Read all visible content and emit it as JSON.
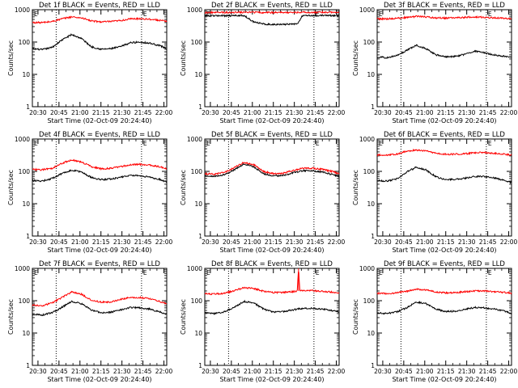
{
  "figure": {
    "colors": {
      "events": "#000000",
      "lld": "#ff0000",
      "markers": "#000000"
    },
    "chart_data": [
      {
        "type": "line",
        "title": "Det 1f BLACK = Events, RED = LLD",
        "xlabel": "Start Time (02-Oct-09 20:24:40)",
        "ylabel": "Counts/sec",
        "yscale": "log",
        "ylim": [
          1,
          1000
        ],
        "xlim": [
          "20:26",
          "22:02"
        ],
        "x_tick_labels": [
          "20:30",
          "20:45",
          "21:00",
          "21:15",
          "21:30",
          "21:45",
          "22:00"
        ],
        "y_tick_labels": [
          "1",
          "10",
          "100",
          "1000"
        ],
        "markers": [
          {
            "x": "20:43",
            "label": ""
          },
          {
            "x": "21:44",
            "label": "E"
          }
        ],
        "start_marker_label": "E",
        "x": [
          "20:26",
          "20:33",
          "20:40",
          "20:47",
          "20:54",
          "21:01",
          "21:08",
          "21:15",
          "21:22",
          "21:29",
          "21:36",
          "21:43",
          "21:50",
          "21:57",
          "22:02"
        ],
        "series": [
          {
            "name": "Events",
            "values": [
              62,
              58,
              68,
              115,
              170,
              130,
              72,
              60,
              62,
              72,
              95,
              100,
              92,
              78,
              62
            ]
          },
          {
            "name": "LLD",
            "values": [
              400,
              400,
              430,
              520,
              600,
              560,
              450,
              420,
              430,
              460,
              520,
              530,
              510,
              470,
              430
            ]
          }
        ]
      },
      {
        "type": "line",
        "title": "Det 2f BLACK = Events, RED = LLD",
        "xlabel": "Start Time (02-Oct-09 20:24:40)",
        "ylabel": "Counts/sec",
        "yscale": "log",
        "ylim": [
          1,
          1000
        ],
        "xlim": [
          "20:26",
          "22:02"
        ],
        "x_tick_labels": [
          "20:30",
          "20:45",
          "21:00",
          "21:15",
          "21:30",
          "21:45",
          "22:00"
        ],
        "y_tick_labels": [
          "1",
          "10",
          "100",
          "1000"
        ],
        "markers": [
          {
            "x": "20:43",
            "label": ""
          },
          {
            "x": "21:44",
            "label": "E"
          }
        ],
        "start_marker_label": "E",
        "x": [
          "20:26",
          "20:33",
          "20:40",
          "20:47",
          "20:54",
          "21:01",
          "21:08",
          "21:15",
          "21:22",
          "21:29",
          "21:32",
          "21:36",
          "21:43",
          "21:50",
          "21:57",
          "22:02"
        ],
        "series": [
          {
            "name": "Events",
            "values": [
              650,
              650,
              650,
              660,
              660,
              420,
              360,
              350,
              350,
              360,
              360,
              660,
              660,
              660,
              660,
              660
            ]
          },
          {
            "name": "LLD",
            "values": [
              820,
              820,
              820,
              830,
              830,
              830,
              820,
              820,
              820,
              830,
              830,
              830,
              830,
              830,
              830,
              830
            ]
          }
        ]
      },
      {
        "type": "line",
        "title": "Det 3f BLACK = Events, RED = LLD",
        "xlabel": "Start Time (02-Oct-09 20:24:40)",
        "ylabel": "Counts/sec",
        "yscale": "log",
        "ylim": [
          1,
          1000
        ],
        "xlim": [
          "20:26",
          "22:02"
        ],
        "x_tick_labels": [
          "20:30",
          "20:45",
          "21:00",
          "21:15",
          "21:30",
          "21:45",
          "22:00"
        ],
        "y_tick_labels": [
          "1",
          "10",
          "100",
          "1000"
        ],
        "markers": [
          {
            "x": "20:43",
            "label": ""
          },
          {
            "x": "21:44",
            "label": "E"
          }
        ],
        "start_marker_label": "E",
        "x": [
          "20:26",
          "20:33",
          "20:40",
          "20:47",
          "20:54",
          "21:01",
          "21:08",
          "21:15",
          "21:22",
          "21:29",
          "21:36",
          "21:43",
          "21:50",
          "21:57",
          "22:02"
        ],
        "series": [
          {
            "name": "Events",
            "values": [
              34,
              33,
              38,
              55,
              80,
              62,
              40,
              35,
              36,
              42,
              52,
              46,
              40,
              36,
              34
            ]
          },
          {
            "name": "LLD",
            "values": [
              520,
              520,
              540,
              580,
              620,
              600,
              560,
              550,
              560,
              580,
              600,
              580,
              560,
              540,
              520
            ]
          }
        ]
      },
      {
        "type": "line",
        "title": "Det 4f BLACK = Events, RED = LLD",
        "xlabel": "Start Time (02-Oct-09 20:24:40)",
        "ylabel": "Counts/sec",
        "yscale": "log",
        "ylim": [
          1,
          1000
        ],
        "xlim": [
          "20:26",
          "22:02"
        ],
        "x_tick_labels": [
          "20:30",
          "20:45",
          "21:00",
          "21:15",
          "21:30",
          "21:45",
          "22:00"
        ],
        "y_tick_labels": [
          "1",
          "10",
          "100",
          "1000"
        ],
        "markers": [
          {
            "x": "20:43",
            "label": ""
          },
          {
            "x": "21:44",
            "label": "E"
          }
        ],
        "start_marker_label": "E",
        "x": [
          "20:26",
          "20:33",
          "20:40",
          "20:47",
          "20:54",
          "21:01",
          "21:08",
          "21:15",
          "21:22",
          "21:29",
          "21:36",
          "21:43",
          "21:50",
          "21:57",
          "22:02"
        ],
        "series": [
          {
            "name": "Events",
            "values": [
              52,
              50,
              60,
              85,
              110,
              95,
              65,
              55,
              58,
              66,
              75,
              72,
              66,
              56,
              46
            ]
          },
          {
            "name": "LLD",
            "values": [
              115,
              112,
              125,
              175,
              230,
              195,
              140,
              120,
              125,
              140,
              160,
              165,
              155,
              140,
              120
            ]
          }
        ]
      },
      {
        "type": "line",
        "title": "Det 5f BLACK = Events, RED = LLD",
        "xlabel": "Start Time (02-Oct-09 20:24:40)",
        "ylabel": "Counts/sec",
        "yscale": "log",
        "ylim": [
          1,
          1000
        ],
        "xlim": [
          "20:26",
          "22:02"
        ],
        "x_tick_labels": [
          "20:30",
          "20:45",
          "21:00",
          "21:15",
          "21:30",
          "21:45",
          "22:00"
        ],
        "y_tick_labels": [
          "1",
          "10",
          "100",
          "1000"
        ],
        "markers": [
          {
            "x": "20:43",
            "label": ""
          },
          {
            "x": "21:44",
            "label": "E"
          }
        ],
        "start_marker_label": "E",
        "x": [
          "20:26",
          "20:33",
          "20:40",
          "20:47",
          "20:54",
          "21:01",
          "21:08",
          "21:15",
          "21:22",
          "21:29",
          "21:36",
          "21:43",
          "21:50",
          "21:57",
          "22:02"
        ],
        "series": [
          {
            "name": "Events",
            "values": [
              72,
              70,
              78,
              110,
              170,
              140,
              85,
              72,
              75,
              90,
              105,
              105,
              95,
              80,
              70
            ]
          },
          {
            "name": "LLD",
            "values": [
              85,
              82,
              92,
              130,
              190,
              160,
              100,
              85,
              88,
              105,
              125,
              125,
              115,
              100,
              82
            ]
          }
        ]
      },
      {
        "type": "line",
        "title": "Det 6f BLACK = Events, RED = LLD",
        "xlabel": "Start Time (02-Oct-09 20:24:40)",
        "ylabel": "Counts/sec",
        "yscale": "log",
        "ylim": [
          1,
          1000
        ],
        "xlim": [
          "20:26",
          "22:02"
        ],
        "x_tick_labels": [
          "20:30",
          "20:45",
          "21:00",
          "21:15",
          "21:30",
          "21:45",
          "22:00"
        ],
        "y_tick_labels": [
          "1",
          "10",
          "100",
          "1000"
        ],
        "markers": [
          {
            "x": "20:43",
            "label": ""
          },
          {
            "x": "21:44",
            "label": "E"
          }
        ],
        "start_marker_label": "E",
        "x": [
          "20:26",
          "20:33",
          "20:40",
          "20:47",
          "20:54",
          "21:01",
          "21:08",
          "21:15",
          "21:22",
          "21:29",
          "21:36",
          "21:43",
          "21:50",
          "21:57",
          "22:02"
        ],
        "series": [
          {
            "name": "Events",
            "values": [
              52,
              50,
              58,
              95,
              135,
              110,
              68,
              55,
              56,
              62,
              70,
              70,
              62,
              52,
              45
            ]
          },
          {
            "name": "LLD",
            "values": [
              320,
              318,
              340,
              420,
              460,
              430,
              360,
              340,
              340,
              350,
              380,
              380,
              360,
              340,
              320
            ]
          }
        ]
      },
      {
        "type": "line",
        "title": "Det 7f BLACK = Events, RED = LLD",
        "xlabel": "Start Time (02-Oct-09 20:24:40)",
        "ylabel": "Counts/sec",
        "yscale": "log",
        "ylim": [
          1,
          1000
        ],
        "xlim": [
          "20:26",
          "22:02"
        ],
        "x_tick_labels": [
          "20:30",
          "20:45",
          "21:00",
          "21:15",
          "21:30",
          "21:45",
          "22:00"
        ],
        "y_tick_labels": [
          "1",
          "10",
          "100",
          "1000"
        ],
        "markers": [
          {
            "x": "20:43",
            "label": ""
          },
          {
            "x": "21:44",
            "label": "E"
          }
        ],
        "start_marker_label": "E",
        "x": [
          "20:26",
          "20:33",
          "20:40",
          "20:47",
          "20:54",
          "21:01",
          "21:08",
          "21:15",
          "21:22",
          "21:29",
          "21:36",
          "21:43",
          "21:50",
          "21:57",
          "22:02"
        ],
        "series": [
          {
            "name": "Events",
            "values": [
              38,
              36,
              42,
              62,
              95,
              82,
              52,
              42,
              44,
              52,
              62,
              60,
              55,
              45,
              38
            ]
          },
          {
            "name": "LLD",
            "values": [
              72,
              70,
              85,
              125,
              185,
              160,
              105,
              90,
              92,
              110,
              125,
              125,
              115,
              95,
              80
            ]
          }
        ]
      },
      {
        "type": "line",
        "title": "Det 8f BLACK = Events, RED = LLD",
        "xlabel": "Start Time (02-Oct-09 20:24:40)",
        "ylabel": "Counts/sec",
        "yscale": "log",
        "ylim": [
          1,
          1000
        ],
        "xlim": [
          "20:26",
          "22:02"
        ],
        "x_tick_labels": [
          "20:30",
          "20:45",
          "21:00",
          "21:15",
          "21:30",
          "21:45",
          "22:00"
        ],
        "y_tick_labels": [
          "1",
          "10",
          "100",
          "1000"
        ],
        "markers": [
          {
            "x": "20:43",
            "label": ""
          },
          {
            "x": "21:44",
            "label": "E"
          }
        ],
        "start_marker_label": "E",
        "x": [
          "20:26",
          "20:33",
          "20:40",
          "20:47",
          "20:54",
          "21:01",
          "21:08",
          "21:15",
          "21:22",
          "21:29",
          "21:32",
          "21:33",
          "21:34",
          "21:36",
          "21:43",
          "21:50",
          "21:57",
          "22:02"
        ],
        "series": [
          {
            "name": "Events",
            "values": [
              42,
              40,
              45,
              62,
              95,
              85,
              55,
              45,
              46,
              52,
              55,
              56,
              55,
              58,
              58,
              55,
              50,
              44
            ]
          },
          {
            "name": "LLD",
            "values": [
              165,
              160,
              170,
              205,
              250,
              240,
              195,
              180,
              180,
              190,
              195,
              1000,
              200,
              210,
              205,
              195,
              185,
              175
            ]
          }
        ]
      },
      {
        "type": "line",
        "title": "Det 9f BLACK = Events, RED = LLD",
        "xlabel": "Start Time (02-Oct-09 20:24:40)",
        "ylabel": "Counts/sec",
        "yscale": "log",
        "ylim": [
          1,
          1000
        ],
        "xlim": [
          "20:26",
          "22:02"
        ],
        "x_tick_labels": [
          "20:30",
          "20:45",
          "21:00",
          "21:15",
          "21:30",
          "21:45",
          "22:00"
        ],
        "y_tick_labels": [
          "1",
          "10",
          "100",
          "1000"
        ],
        "markers": [
          {
            "x": "20:43",
            "label": ""
          },
          {
            "x": "21:44",
            "label": "E"
          }
        ],
        "start_marker_label": "E",
        "x": [
          "20:26",
          "20:33",
          "20:40",
          "20:47",
          "20:54",
          "21:01",
          "21:08",
          "21:15",
          "21:22",
          "21:29",
          "21:36",
          "21:43",
          "21:50",
          "21:57",
          "22:02"
        ],
        "series": [
          {
            "name": "Events",
            "values": [
              42,
              40,
              45,
              60,
              92,
              80,
              55,
              46,
              48,
              55,
              62,
              60,
              55,
              48,
              40
            ]
          },
          {
            "name": "LLD",
            "values": [
              170,
              165,
              175,
              195,
              230,
              215,
              185,
              175,
              178,
              190,
              200,
              200,
              190,
              180,
              170
            ]
          }
        ]
      }
    ]
  }
}
